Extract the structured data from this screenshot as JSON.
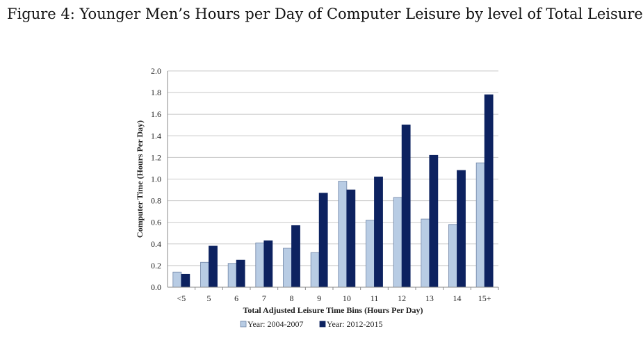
{
  "figure": {
    "title": "Figure 4: Younger Men’s Hours per Day of Computer Leisure by level of Total Leisure"
  },
  "chart_data": {
    "type": "bar",
    "title": "Figure 4: Younger Men’s Hours per Day of Computer Leisure by level of Total Leisure",
    "xlabel": "Total Adjusted Leisure Time Bins (Hours Per Day)",
    "ylabel": "Computer Time (Hours Per Day)",
    "ylim": [
      0,
      2.0
    ],
    "yticks": [
      "0.0",
      "0.2",
      "0.4",
      "0.6",
      "0.8",
      "1.0",
      "1.2",
      "1.4",
      "1.6",
      "1.8",
      "2.0"
    ],
    "categories": [
      "<5",
      "5",
      "6",
      "7",
      "8",
      "9",
      "10",
      "11",
      "12",
      "13",
      "14",
      "15+"
    ],
    "series": [
      {
        "name": "Year: 2004-2007",
        "color": "#b8cce4",
        "values": [
          0.14,
          0.23,
          0.22,
          0.41,
          0.36,
          0.32,
          0.98,
          0.62,
          0.83,
          0.63,
          0.58,
          1.15
        ]
      },
      {
        "name": "Year: 2012-2015",
        "color": "#0d2260",
        "values": [
          0.12,
          0.38,
          0.25,
          0.43,
          0.57,
          0.87,
          0.9,
          1.02,
          1.5,
          1.22,
          1.08,
          1.78
        ]
      }
    ],
    "legend_position": "bottom",
    "grid": true
  }
}
